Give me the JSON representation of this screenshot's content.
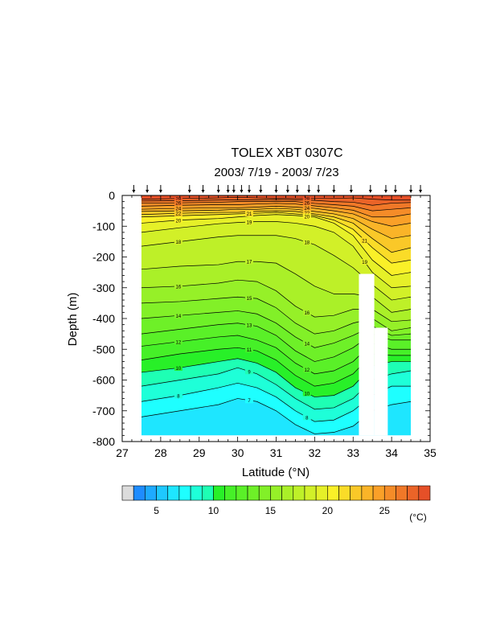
{
  "chart_data": {
    "type": "heatmap",
    "title": "TOLEX XBT 0307C",
    "subtitle": "2003/ 7/19 - 2003/ 7/23",
    "xlabel": "Latitude (°N)",
    "ylabel": "Depth (m)",
    "xlim": [
      27,
      35
    ],
    "ylim": [
      -800,
      0
    ],
    "x_ticks": [
      "27",
      "28",
      "29",
      "30",
      "31",
      "32",
      "33",
      "34",
      "35"
    ],
    "y_ticks": [
      "0",
      "-100",
      "-200",
      "-300",
      "-400",
      "-500",
      "-600",
      "-700",
      "-800"
    ],
    "station_latitudes": [
      27.3,
      27.65,
      28.0,
      28.75,
      29.1,
      29.5,
      29.75,
      29.9,
      30.1,
      30.3,
      30.6,
      31.0,
      31.3,
      31.55,
      31.85,
      32.1,
      32.5,
      32.95,
      33.45,
      33.85,
      34.1,
      34.5,
      34.75
    ],
    "contour_labels": [
      "29",
      "25",
      "23",
      "22",
      "21",
      "20",
      "19",
      "18",
      "17",
      "16",
      "15",
      "14",
      "13",
      "12",
      "11",
      "10",
      "9",
      "8",
      "7",
      "6"
    ],
    "section_profiles": {
      "latitudes": [
        27.5,
        28.5,
        29.5,
        30.0,
        30.5,
        31.0,
        31.5,
        32.0,
        32.5,
        33.0,
        33.5,
        34.0,
        34.5
      ],
      "isotherms": [
        {
          "t": 28,
          "depth": [
            -12,
            -10,
            -8,
            -6,
            -8,
            -9,
            -10,
            -10,
            -10,
            -8,
            -12,
            -15,
            -15
          ]
        },
        {
          "t": 27,
          "depth": [
            -18,
            -17,
            -15,
            -14,
            -14,
            -13,
            -14,
            -16,
            -20,
            -22,
            -32,
            -25,
            -23
          ]
        },
        {
          "t": 26,
          "depth": [
            -25,
            -24,
            -22,
            -20,
            -20,
            -19,
            -20,
            -26,
            -30,
            -35,
            -50,
            -45,
            -40
          ]
        },
        {
          "t": 25,
          "depth": [
            -35,
            -32,
            -30,
            -30,
            -28,
            -26,
            -28,
            -34,
            -40,
            -48,
            -70,
            -70,
            -60
          ]
        },
        {
          "t": 24,
          "depth": [
            -45,
            -42,
            -40,
            -40,
            -38,
            -35,
            -38,
            -42,
            -50,
            -60,
            -85,
            -100,
            -90
          ]
        },
        {
          "t": 23,
          "depth": [
            -52,
            -50,
            -48,
            -45,
            -45,
            -42,
            -45,
            -52,
            -60,
            -75,
            -110,
            -140,
            -130
          ]
        },
        {
          "t": 22,
          "depth": [
            -62,
            -58,
            -55,
            -55,
            -52,
            -50,
            -52,
            -60,
            -70,
            -90,
            -140,
            -185,
            -170
          ]
        },
        {
          "t": 21,
          "depth": [
            -70,
            -66,
            -62,
            -60,
            -58,
            -55,
            -60,
            -65,
            -80,
            -110,
            -170,
            -220,
            -210
          ]
        },
        {
          "t": 20,
          "depth": [
            -90,
            -80,
            -75,
            -70,
            -65,
            -62,
            -65,
            -70,
            -90,
            -130,
            -210,
            -260,
            -250
          ]
        },
        {
          "t": 19,
          "depth": [
            -120,
            -105,
            -92,
            -88,
            -85,
            -85,
            -90,
            -100,
            -120,
            -165,
            -250,
            -300,
            -295
          ]
        },
        {
          "t": 18,
          "depth": [
            -165,
            -150,
            -135,
            -130,
            -130,
            -130,
            -140,
            -160,
            -195,
            -235,
            -290,
            -340,
            -330
          ]
        },
        {
          "t": 17,
          "depth": [
            -240,
            -230,
            -225,
            -215,
            -215,
            -220,
            -255,
            -295,
            -320,
            -320,
            -330,
            -380,
            -370
          ]
        },
        {
          "t": 16,
          "depth": [
            -300,
            -295,
            -285,
            -275,
            -280,
            -310,
            -360,
            -395,
            -390,
            -370,
            -370,
            -410,
            -405
          ]
        },
        {
          "t": 15,
          "depth": [
            -350,
            -345,
            -335,
            -330,
            -335,
            -365,
            -415,
            -450,
            -440,
            -415,
            -400,
            -440,
            -430
          ]
        },
        {
          "t": 14,
          "depth": [
            -400,
            -390,
            -380,
            -375,
            -385,
            -415,
            -460,
            -495,
            -480,
            -455,
            -425,
            -455,
            -450
          ]
        },
        {
          "t": 13,
          "depth": [
            -450,
            -435,
            -420,
            -415,
            -425,
            -455,
            -505,
            -540,
            -525,
            -495,
            -450,
            -470,
            -470
          ]
        },
        {
          "t": 12,
          "depth": [
            -490,
            -475,
            -460,
            -455,
            -470,
            -495,
            -545,
            -580,
            -570,
            -540,
            -480,
            -500,
            -500
          ]
        },
        {
          "t": 11,
          "depth": [
            -535,
            -515,
            -500,
            -495,
            -505,
            -535,
            -585,
            -620,
            -610,
            -580,
            -515,
            -520,
            -520
          ]
        },
        {
          "t": 10,
          "depth": [
            -575,
            -560,
            -540,
            -530,
            -545,
            -575,
            -625,
            -655,
            -650,
            -620,
            -555,
            -540,
            -540
          ]
        },
        {
          "t": 9,
          "depth": [
            -620,
            -600,
            -580,
            -560,
            -580,
            -615,
            -660,
            -695,
            -690,
            -660,
            -600,
            -580,
            -570
          ]
        },
        {
          "t": 8,
          "depth": [
            -670,
            -650,
            -625,
            -610,
            -625,
            -655,
            -700,
            -735,
            -730,
            -700,
            -650,
            -620,
            -620
          ]
        },
        {
          "t": 7,
          "depth": [
            -720,
            -700,
            -680,
            -660,
            -670,
            -700,
            -745,
            -775,
            -770,
            -750,
            -700,
            -680,
            -670
          ]
        }
      ]
    },
    "no_data_regions": [
      {
        "lat": [
          27.0,
          27.5
        ],
        "depth": [
          0,
          -780
        ]
      },
      {
        "lat": [
          34.5,
          35.0
        ],
        "depth": [
          0,
          -780
        ]
      },
      {
        "lat": [
          33.15,
          33.55
        ],
        "depth": [
          -255,
          -780
        ]
      },
      {
        "lat": [
          33.55,
          33.9
        ],
        "depth": [
          -430,
          -780
        ]
      }
    ],
    "colorbar": {
      "ticks": [
        5,
        10,
        15,
        20,
        25
      ],
      "unit": "(°C)",
      "colors": [
        "#dcdcdc",
        "#1e8cff",
        "#1eaaff",
        "#1ec8ff",
        "#1ee6ff",
        "#1effff",
        "#1effd8",
        "#1effb4",
        "#28f028",
        "#46f028",
        "#5af028",
        "#6ef028",
        "#82f028",
        "#96f028",
        "#aaf028",
        "#bef028",
        "#d2f028",
        "#e6f028",
        "#faf028",
        "#fadc28",
        "#fac828",
        "#fab428",
        "#faa028",
        "#f58c28",
        "#f07828",
        "#eb6428",
        "#e65028"
      ]
    }
  }
}
